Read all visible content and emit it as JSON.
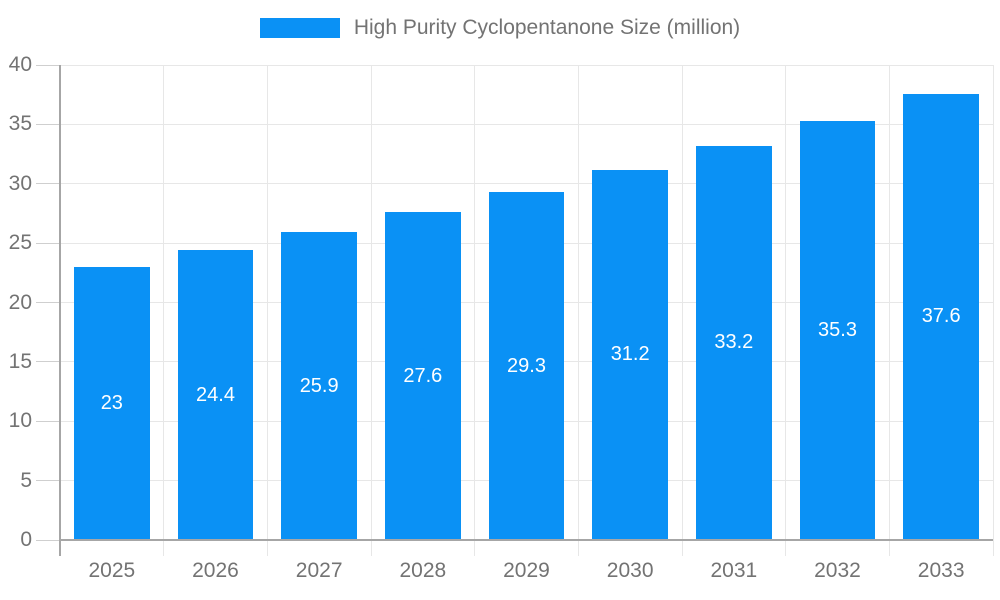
{
  "chart_data": {
    "type": "bar",
    "title": "High Purity Cyclopentanone Size (million)",
    "legend": [
      "High Purity Cyclopentanone Size (million)"
    ],
    "legend_position": "top-center",
    "categories": [
      "2025",
      "2026",
      "2027",
      "2028",
      "2029",
      "2030",
      "2031",
      "2032",
      "2033"
    ],
    "values": [
      23,
      24.4,
      25.9,
      27.6,
      29.3,
      31.2,
      33.2,
      35.3,
      37.6
    ],
    "value_labels": [
      "23",
      "24.4",
      "25.9",
      "27.6",
      "29.3",
      "31.2",
      "33.2",
      "35.3",
      "37.6"
    ],
    "xlabel": "",
    "ylabel": "",
    "ylim": [
      0,
      40
    ],
    "yticks": [
      0,
      5,
      10,
      15,
      20,
      25,
      30,
      35,
      40
    ],
    "grid": true,
    "colors": {
      "bar": "#0a91f5",
      "grid": "#e7e7e7",
      "axis": "#a6a6a6",
      "tick": "#cfcfcf",
      "text": "#737373",
      "value_label": "#ffffff",
      "background": "#ffffff"
    }
  }
}
